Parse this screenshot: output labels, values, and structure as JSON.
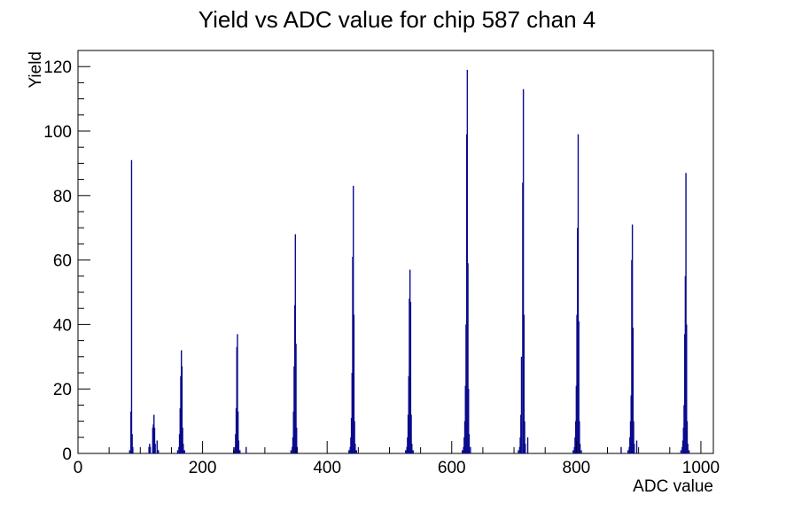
{
  "window": {
    "background": "#ffffff"
  },
  "chart_data": {
    "type": "bar",
    "title": "Yield vs ADC value for chip 587 chan 4",
    "xlabel": "ADC value",
    "ylabel": "Yield",
    "xlim": [
      0,
      1020
    ],
    "ylim": [
      0,
      125
    ],
    "x_major_ticks": [
      0,
      200,
      400,
      600,
      800,
      1000
    ],
    "x_minor_step": 50,
    "y_major_ticks": [
      0,
      20,
      40,
      60,
      80,
      100,
      120
    ],
    "y_minor_step": 5,
    "grid": false,
    "legend": "none",
    "bar_color": "#0b0b8d",
    "frame_color": "#000000",
    "bin_width_adc": 2,
    "clusters": [
      {
        "center": 87,
        "peak": 91,
        "bars": [
          [
            83,
            1
          ],
          [
            85,
            13
          ],
          [
            86,
            91
          ],
          [
            87,
            6
          ],
          [
            88,
            2
          ]
        ]
      },
      {
        "center": 122,
        "peak": 12,
        "bars": [
          [
            114,
            2
          ],
          [
            115,
            3
          ],
          [
            116,
            2
          ],
          [
            120,
            8
          ],
          [
            121,
            9
          ],
          [
            122,
            12
          ],
          [
            123,
            8
          ],
          [
            124,
            3
          ],
          [
            127,
            4
          ],
          [
            129,
            1
          ]
        ]
      },
      {
        "center": 167,
        "peak": 32,
        "bars": [
          [
            160,
            1
          ],
          [
            162,
            2
          ],
          [
            163,
            6
          ],
          [
            164,
            14
          ],
          [
            165,
            24
          ],
          [
            166,
            32
          ],
          [
            167,
            27
          ],
          [
            168,
            8
          ],
          [
            169,
            3
          ],
          [
            171,
            1
          ]
        ]
      },
      {
        "center": 256,
        "peak": 37,
        "bars": [
          [
            250,
            1
          ],
          [
            252,
            2
          ],
          [
            253,
            6
          ],
          [
            254,
            14
          ],
          [
            255,
            33
          ],
          [
            256,
            37
          ],
          [
            257,
            13
          ],
          [
            258,
            4
          ],
          [
            260,
            1
          ],
          [
            270,
            2
          ]
        ]
      },
      {
        "center": 349,
        "peak": 68,
        "bars": [
          [
            342,
            1
          ],
          [
            344,
            2
          ],
          [
            345,
            5
          ],
          [
            346,
            13
          ],
          [
            347,
            27
          ],
          [
            348,
            46
          ],
          [
            349,
            68
          ],
          [
            350,
            34
          ],
          [
            351,
            8
          ],
          [
            352,
            2
          ]
        ]
      },
      {
        "center": 442,
        "peak": 83,
        "bars": [
          [
            435,
            1
          ],
          [
            437,
            2
          ],
          [
            438,
            5
          ],
          [
            439,
            11
          ],
          [
            440,
            25
          ],
          [
            441,
            61
          ],
          [
            442,
            83
          ],
          [
            443,
            43
          ],
          [
            444,
            10
          ],
          [
            445,
            3
          ],
          [
            447,
            1
          ]
        ]
      },
      {
        "center": 533,
        "peak": 57,
        "bars": [
          [
            526,
            1
          ],
          [
            528,
            2
          ],
          [
            529,
            5
          ],
          [
            530,
            12
          ],
          [
            531,
            24
          ],
          [
            532,
            48
          ],
          [
            533,
            57
          ],
          [
            534,
            47
          ],
          [
            535,
            12
          ],
          [
            536,
            3
          ],
          [
            538,
            1
          ]
        ]
      },
      {
        "center": 625,
        "peak": 119,
        "bars": [
          [
            617,
            1
          ],
          [
            619,
            2
          ],
          [
            620,
            5
          ],
          [
            621,
            10
          ],
          [
            622,
            21
          ],
          [
            623,
            40
          ],
          [
            624,
            99
          ],
          [
            625,
            119
          ],
          [
            626,
            59
          ],
          [
            627,
            20
          ],
          [
            628,
            6
          ],
          [
            630,
            2
          ]
        ]
      },
      {
        "center": 715,
        "peak": 113,
        "bars": [
          [
            707,
            1
          ],
          [
            709,
            2
          ],
          [
            710,
            5
          ],
          [
            711,
            12
          ],
          [
            712,
            30
          ],
          [
            714,
            84
          ],
          [
            715,
            113
          ],
          [
            716,
            43
          ],
          [
            717,
            10
          ],
          [
            718,
            3
          ],
          [
            722,
            5
          ]
        ]
      },
      {
        "center": 803,
        "peak": 99,
        "bars": [
          [
            795,
            1
          ],
          [
            797,
            2
          ],
          [
            798,
            5
          ],
          [
            799,
            10
          ],
          [
            800,
            21
          ],
          [
            801,
            43
          ],
          [
            802,
            70
          ],
          [
            803,
            99
          ],
          [
            804,
            41
          ],
          [
            805,
            10
          ],
          [
            806,
            3
          ],
          [
            808,
            1
          ]
        ]
      },
      {
        "center": 890,
        "peak": 71,
        "bars": [
          [
            872,
            2
          ],
          [
            883,
            1
          ],
          [
            885,
            2
          ],
          [
            886,
            5
          ],
          [
            887,
            10
          ],
          [
            888,
            18
          ],
          [
            889,
            60
          ],
          [
            890,
            71
          ],
          [
            891,
            39
          ],
          [
            892,
            10
          ],
          [
            893,
            3
          ],
          [
            897,
            4
          ]
        ]
      },
      {
        "center": 976,
        "peak": 87,
        "bars": [
          [
            968,
            1
          ],
          [
            970,
            2
          ],
          [
            971,
            4
          ],
          [
            972,
            8
          ],
          [
            973,
            15
          ],
          [
            974,
            37
          ],
          [
            975,
            55
          ],
          [
            976,
            87
          ],
          [
            977,
            40
          ],
          [
            978,
            10
          ],
          [
            979,
            3
          ],
          [
            981,
            1
          ]
        ]
      }
    ]
  }
}
